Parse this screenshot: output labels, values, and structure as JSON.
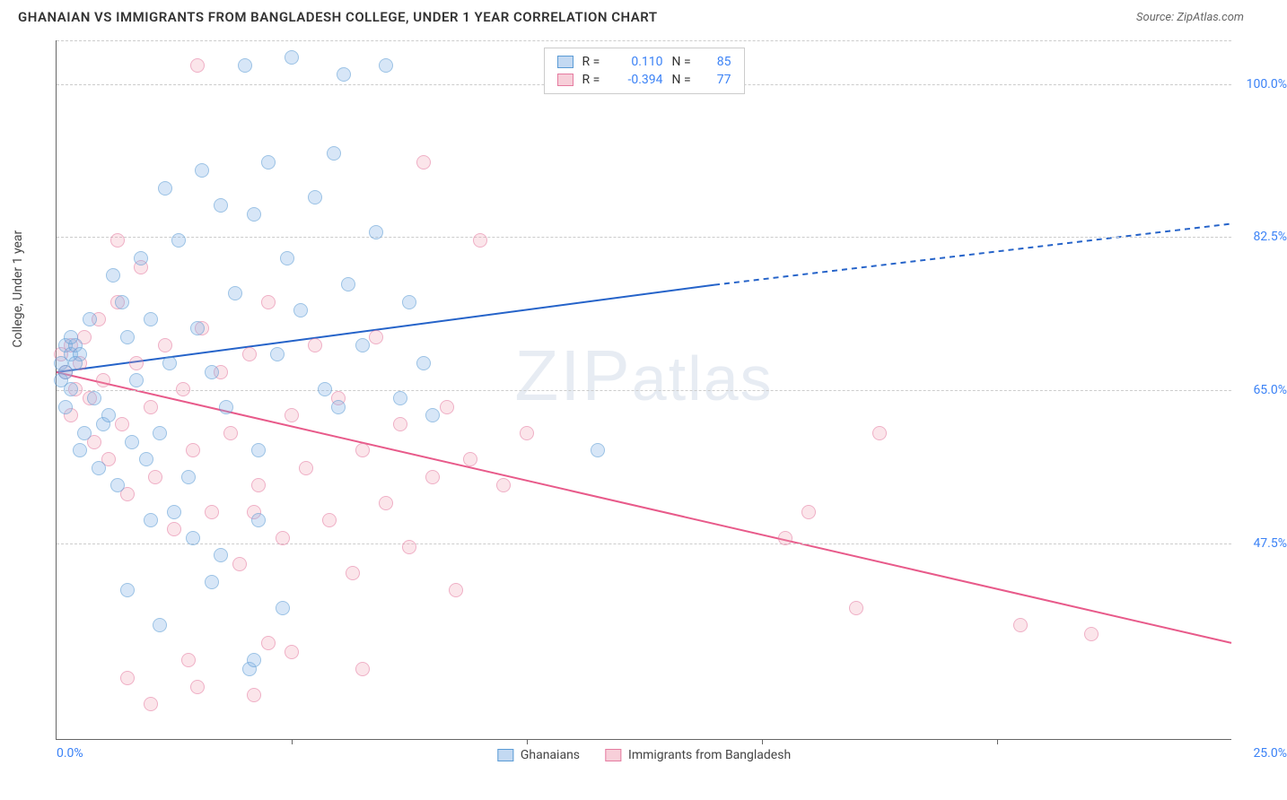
{
  "header": {
    "title": "GHANAIAN VS IMMIGRANTS FROM BANGLADESH COLLEGE, UNDER 1 YEAR CORRELATION CHART",
    "source": "Source: ZipAtlas.com"
  },
  "axes": {
    "y_label": "College, Under 1 year",
    "x_min": 0,
    "x_max": 25,
    "y_min": 25,
    "y_max": 105,
    "x_tick_left": "0.0%",
    "x_tick_right": "25.0%",
    "y_ticks": [
      {
        "v": 100,
        "label": "100.0%"
      },
      {
        "v": 82.5,
        "label": "82.5%"
      },
      {
        "v": 65,
        "label": "65.0%"
      },
      {
        "v": 47.5,
        "label": "47.5%"
      }
    ],
    "x_tick_marks": [
      5,
      10,
      15,
      20
    ],
    "grid_color": "#cccccc"
  },
  "watermark": {
    "part1": "ZIP",
    "part2": "atlas"
  },
  "legend_top": {
    "rows": [
      {
        "swatch": "blue",
        "r_label": "R =",
        "r_val": "0.110",
        "n_label": "N =",
        "n_val": "85"
      },
      {
        "swatch": "pink",
        "r_label": "R =",
        "r_val": "-0.394",
        "n_label": "N =",
        "n_val": "77"
      }
    ]
  },
  "legend_bottom": {
    "items": [
      {
        "swatch": "blue",
        "label": "Ghanaians"
      },
      {
        "swatch": "pink",
        "label": "Immigrants from Bangladesh"
      }
    ]
  },
  "series": {
    "blue": {
      "color_fill": "rgba(135,180,230,0.55)",
      "color_stroke": "#5a9bd5",
      "trend": {
        "x1": 0,
        "y1": 67,
        "x2_solid": 14,
        "y2_solid": 77,
        "x2": 25,
        "y2": 84,
        "stroke": "#2563c9",
        "width": 2
      },
      "points": [
        [
          0.1,
          68
        ],
        [
          0.2,
          70
        ],
        [
          0.1,
          66
        ],
        [
          0.3,
          69
        ],
        [
          0.2,
          67
        ],
        [
          0.4,
          70
        ],
        [
          0.3,
          65
        ],
        [
          0.5,
          69
        ],
        [
          0.2,
          63
        ],
        [
          0.3,
          71
        ],
        [
          0.4,
          68
        ],
        [
          0.6,
          60
        ],
        [
          0.5,
          58
        ],
        [
          0.8,
          64
        ],
        [
          0.7,
          73
        ],
        [
          1.0,
          61
        ],
        [
          0.9,
          56
        ],
        [
          1.2,
          78
        ],
        [
          1.1,
          62
        ],
        [
          1.3,
          54
        ],
        [
          1.4,
          75
        ],
        [
          1.5,
          71
        ],
        [
          1.6,
          59
        ],
        [
          1.7,
          66
        ],
        [
          1.8,
          80
        ],
        [
          1.9,
          57
        ],
        [
          2.0,
          73
        ],
        [
          2.2,
          60
        ],
        [
          2.3,
          88
        ],
        [
          2.4,
          68
        ],
        [
          2.5,
          51
        ],
        [
          2.6,
          82
        ],
        [
          2.8,
          55
        ],
        [
          3.0,
          72
        ],
        [
          3.1,
          90
        ],
        [
          3.3,
          67
        ],
        [
          3.5,
          86
        ],
        [
          3.6,
          63
        ],
        [
          3.8,
          76
        ],
        [
          4.0,
          102
        ],
        [
          4.2,
          85
        ],
        [
          4.3,
          58
        ],
        [
          4.5,
          91
        ],
        [
          4.7,
          69
        ],
        [
          4.9,
          80
        ],
        [
          5.0,
          103
        ],
        [
          5.2,
          74
        ],
        [
          5.5,
          87
        ],
        [
          5.7,
          65
        ],
        [
          5.9,
          92
        ],
        [
          6.1,
          101
        ],
        [
          4.1,
          33
        ],
        [
          4.2,
          34
        ],
        [
          3.3,
          43
        ],
        [
          6.0,
          63
        ],
        [
          6.2,
          77
        ],
        [
          6.5,
          70
        ],
        [
          6.8,
          83
        ],
        [
          7.0,
          102
        ],
        [
          7.3,
          64
        ],
        [
          7.5,
          75
        ],
        [
          7.8,
          68
        ],
        [
          8.0,
          62
        ],
        [
          4.8,
          40
        ],
        [
          3.5,
          46
        ],
        [
          2.9,
          48
        ],
        [
          1.5,
          42
        ],
        [
          2.2,
          38
        ],
        [
          11.5,
          58
        ],
        [
          4.3,
          50
        ],
        [
          2.0,
          50
        ]
      ]
    },
    "pink": {
      "color_fill": "rgba(240,160,180,0.45)",
      "color_stroke": "#e57ba0",
      "trend": {
        "x1": 0,
        "y1": 67,
        "x2": 25,
        "y2": 36,
        "stroke": "#e85a8a",
        "width": 2
      },
      "points": [
        [
          0.1,
          69
        ],
        [
          0.2,
          67
        ],
        [
          0.3,
          70
        ],
        [
          0.4,
          65
        ],
        [
          0.5,
          68
        ],
        [
          0.3,
          62
        ],
        [
          0.6,
          71
        ],
        [
          0.7,
          64
        ],
        [
          0.8,
          59
        ],
        [
          0.9,
          73
        ],
        [
          1.0,
          66
        ],
        [
          1.1,
          57
        ],
        [
          1.3,
          75
        ],
        [
          1.4,
          61
        ],
        [
          1.5,
          53
        ],
        [
          1.7,
          68
        ],
        [
          1.8,
          79
        ],
        [
          2.0,
          63
        ],
        [
          2.1,
          55
        ],
        [
          2.3,
          70
        ],
        [
          2.5,
          49
        ],
        [
          2.7,
          65
        ],
        [
          2.9,
          58
        ],
        [
          3.1,
          72
        ],
        [
          3.3,
          51
        ],
        [
          3.5,
          67
        ],
        [
          3.7,
          60
        ],
        [
          3.0,
          102
        ],
        [
          1.3,
          82
        ],
        [
          3.9,
          45
        ],
        [
          4.1,
          69
        ],
        [
          4.3,
          54
        ],
        [
          4.5,
          75
        ],
        [
          4.8,
          48
        ],
        [
          5.0,
          62
        ],
        [
          5.3,
          56
        ],
        [
          5.5,
          70
        ],
        [
          5.8,
          50
        ],
        [
          6.0,
          64
        ],
        [
          6.3,
          44
        ],
        [
          6.5,
          58
        ],
        [
          6.8,
          71
        ],
        [
          7.0,
          52
        ],
        [
          7.3,
          61
        ],
        [
          4.2,
          51
        ],
        [
          7.5,
          47
        ],
        [
          7.8,
          91
        ],
        [
          8.0,
          55
        ],
        [
          8.3,
          63
        ],
        [
          8.5,
          42
        ],
        [
          8.8,
          57
        ],
        [
          9.0,
          82
        ],
        [
          9.5,
          54
        ],
        [
          10.0,
          60
        ],
        [
          4.5,
          36
        ],
        [
          2.8,
          34
        ],
        [
          1.5,
          32
        ],
        [
          3.0,
          31
        ],
        [
          5.0,
          35
        ],
        [
          4.2,
          30
        ],
        [
          2.0,
          29
        ],
        [
          6.5,
          33
        ],
        [
          15.5,
          48
        ],
        [
          16.0,
          51
        ],
        [
          17.0,
          40
        ],
        [
          17.5,
          60
        ],
        [
          20.5,
          38
        ],
        [
          22.0,
          37
        ]
      ]
    }
  },
  "colors": {
    "axis": "#666666",
    "tick_text": "#3b82f6",
    "title": "#333333"
  }
}
